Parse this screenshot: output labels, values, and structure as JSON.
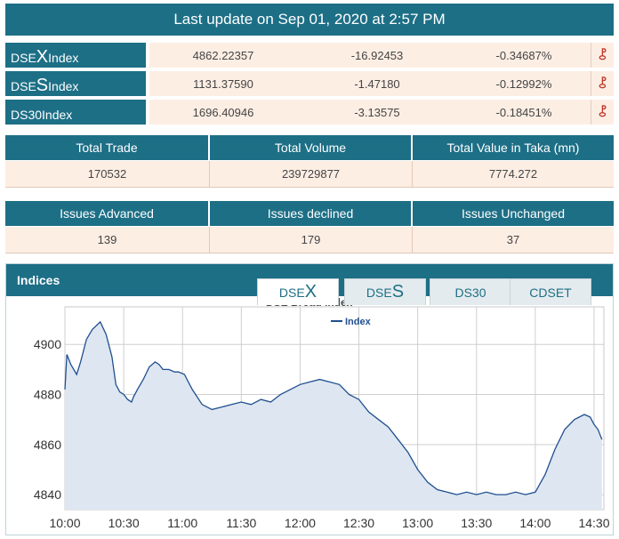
{
  "header": {
    "title": "Last update on Sep 01, 2020 at 2:57 PM"
  },
  "indices": [
    {
      "name_prefix": "DSE",
      "name_letter": "X",
      "name_suffix": " Index",
      "value": "4862.22357",
      "change": "-16.92453",
      "percent": "-0.34687%",
      "direction_icon": "double-chevron-down"
    },
    {
      "name_prefix": "DSE",
      "name_letter": "S",
      "name_suffix": " Index",
      "value": "1131.37590",
      "change": "-1.47180",
      "percent": "-0.12992%",
      "direction_icon": "double-chevron-down"
    },
    {
      "name_prefix": "DS30",
      "name_letter": "",
      "name_suffix": " Index",
      "value": "1696.40946",
      "change": "-3.13575",
      "percent": "-0.18451%",
      "direction_icon": "double-chevron-down"
    }
  ],
  "trade_stats": {
    "headers": [
      "Total Trade",
      "Total Volume",
      "Total Value in Taka (mn)"
    ],
    "values": [
      "170532",
      "239729877",
      "7774.272"
    ]
  },
  "issue_stats": {
    "headers": [
      "Issues Advanced",
      "Issues declined",
      "Issues Unchanged"
    ],
    "values": [
      "139",
      "179",
      "37"
    ]
  },
  "indices_panel": {
    "title": "Indices",
    "tabs": [
      {
        "prefix": "DSE",
        "letter": "X",
        "active": true
      },
      {
        "prefix": "DSE",
        "letter": "S",
        "active": false
      },
      {
        "prefix": "DS30",
        "letter": "",
        "active": false
      },
      {
        "prefix": "CDSET",
        "letter": "",
        "active": false
      }
    ]
  },
  "colors": {
    "header_bg": "#1d6f86",
    "row_bg": "#fdeee4",
    "down_arrow": "#c0392b",
    "series_line": "#1f4f8f",
    "series_fill": "#dde6f1"
  },
  "chart_data": {
    "type": "area",
    "title": "DSE Broad Index",
    "legend": [
      "Index"
    ],
    "legend_position": "top-right",
    "grid": true,
    "xlabel": "",
    "ylabel": "",
    "x_ticks": [
      "10:00",
      "10:30",
      "11:00",
      "11:30",
      "12:00",
      "12:30",
      "13:00",
      "13:30",
      "14:00",
      "14:30"
    ],
    "y_ticks": [
      4840,
      4860,
      4880,
      4900
    ],
    "x_range_minutes": [
      0,
      275
    ],
    "ylim": [
      4834,
      4915
    ],
    "series": [
      {
        "name": "Index",
        "x": [
          0,
          1,
          3,
          6,
          8,
          11,
          14,
          18,
          21,
          24,
          26,
          28,
          30,
          32,
          34,
          35,
          37,
          40,
          43,
          46,
          48,
          50,
          53,
          56,
          58,
          61,
          65,
          70,
          75,
          80,
          85,
          90,
          95,
          100,
          105,
          110,
          115,
          120,
          125,
          130,
          135,
          140,
          145,
          150,
          155,
          160,
          165,
          170,
          175,
          180,
          185,
          190,
          195,
          200,
          205,
          210,
          215,
          220,
          225,
          230,
          235,
          240,
          245,
          250,
          255,
          260,
          265,
          268,
          270,
          272,
          274
        ],
        "y": [
          4882,
          4896,
          4892,
          4888,
          4893,
          4902,
          4906,
          4909,
          4904,
          4895,
          4884,
          4881,
          4880,
          4878,
          4877,
          4879,
          4882,
          4886,
          4891,
          4893,
          4892,
          4890,
          4890,
          4889,
          4889,
          4888,
          4882,
          4876,
          4874,
          4875,
          4876,
          4877,
          4876,
          4878,
          4877,
          4880,
          4882,
          4884,
          4885,
          4886,
          4885,
          4884,
          4880,
          4878,
          4873,
          4870,
          4867,
          4862,
          4857,
          4850,
          4845,
          4842,
          4841,
          4840,
          4841,
          4840,
          4841,
          4840,
          4840,
          4841,
          4840,
          4841,
          4848,
          4858,
          4866,
          4870,
          4872,
          4871,
          4868,
          4866,
          4862
        ]
      }
    ]
  }
}
